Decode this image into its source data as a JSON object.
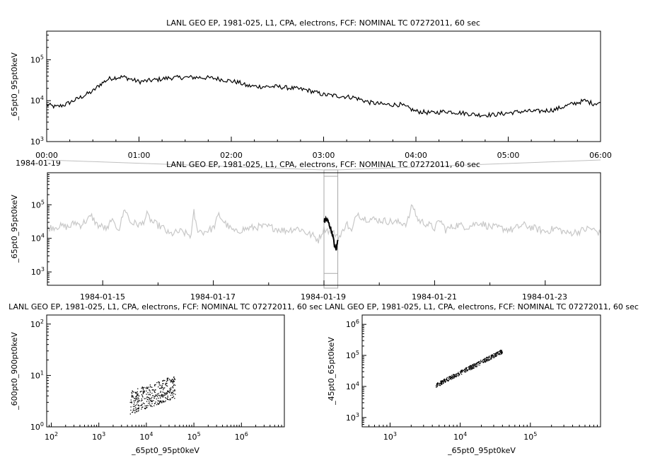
{
  "chart_data": [
    {
      "id": "top",
      "type": "line",
      "title": "LANL GEO EP, 1981-025, L1, CPA, electrons, FCF: NOMINAL TC 07272011, 60 sec",
      "ylabel": "_65pt0_95pt0keV",
      "xlabel": "",
      "x_tick_labels": [
        "00:00",
        "01:00",
        "02:00",
        "03:00",
        "04:00",
        "05:00",
        "06:00"
      ],
      "x_date_label": "1984-01-19",
      "xlim": [
        0,
        6
      ],
      "x_unit": "hours",
      "y_scale": "log",
      "ylim": [
        1000,
        500000
      ],
      "y_ticks": [
        {
          "value": 1000,
          "base": "10",
          "exp": "3"
        },
        {
          "value": 10000,
          "base": "10",
          "exp": "4"
        },
        {
          "value": 100000,
          "base": "10",
          "exp": "5"
        }
      ],
      "series": [
        {
          "color": "#000000",
          "points": [
            [
              0,
              8000
            ],
            [
              0.1,
              7000
            ],
            [
              0.2,
              8000
            ],
            [
              0.33,
              11000
            ],
            [
              0.5,
              17000
            ],
            [
              0.58,
              25000
            ],
            [
              0.67,
              34000
            ],
            [
              0.75,
              37000
            ],
            [
              0.83,
              38000
            ],
            [
              0.92,
              33000
            ],
            [
              1.0,
              29000
            ],
            [
              1.17,
              32000
            ],
            [
              1.33,
              36000
            ],
            [
              1.5,
              37000
            ],
            [
              1.67,
              37000
            ],
            [
              1.83,
              35000
            ],
            [
              2.0,
              30000
            ],
            [
              2.08,
              28000
            ],
            [
              2.17,
              23000
            ],
            [
              2.33,
              22000
            ],
            [
              2.5,
              22000
            ],
            [
              2.67,
              20000
            ],
            [
              2.83,
              18000
            ],
            [
              3.0,
              14000
            ],
            [
              3.17,
              13000
            ],
            [
              3.33,
              12000
            ],
            [
              3.5,
              9000
            ],
            [
              3.67,
              8000
            ],
            [
              3.83,
              8000
            ],
            [
              4.0,
              5500
            ],
            [
              4.17,
              5000
            ],
            [
              4.33,
              5500
            ],
            [
              4.5,
              5000
            ],
            [
              4.67,
              4500
            ],
            [
              4.83,
              4500
            ],
            [
              5.0,
              5000
            ],
            [
              5.17,
              5500
            ],
            [
              5.33,
              5500
            ],
            [
              5.5,
              6000
            ],
            [
              5.67,
              8000
            ],
            [
              5.83,
              10000
            ],
            [
              5.92,
              8500
            ],
            [
              6.0,
              9000
            ]
          ]
        }
      ]
    },
    {
      "id": "overview",
      "type": "line",
      "title": "LANL GEO EP, 1981-025, L1, CPA, electrons, FCF: NOMINAL TC 07272011, 60 sec",
      "ylabel": "_65pt0_95pt0keV",
      "xlabel": "",
      "x_tick_labels": [
        "1984-01-15",
        "1984-01-17",
        "1984-01-19",
        "1984-01-21",
        "1984-01-23"
      ],
      "x_ticks": [
        15,
        17,
        19,
        21,
        23
      ],
      "xlim": [
        14,
        24
      ],
      "x_unit": "day of January 1984",
      "y_scale": "log",
      "ylim": [
        400,
        900000
      ],
      "y_ticks": [
        {
          "value": 1000,
          "base": "10",
          "exp": "3"
        },
        {
          "value": 10000,
          "base": "10",
          "exp": "4"
        },
        {
          "value": 100000,
          "base": "10",
          "exp": "5"
        }
      ],
      "highlight_xrange": [
        19.0,
        19.25
      ],
      "series": [
        {
          "color": "#c8c8c8",
          "points": [
            [
              14.0,
              20000
            ],
            [
              14.2,
              23000
            ],
            [
              14.4,
              22000
            ],
            [
              14.5,
              30000
            ],
            [
              14.6,
              25000
            ],
            [
              14.8,
              45000
            ],
            [
              14.9,
              25000
            ],
            [
              15.0,
              22000
            ],
            [
              15.1,
              18000
            ],
            [
              15.15,
              40000
            ],
            [
              15.2,
              25000
            ],
            [
              15.3,
              20000
            ],
            [
              15.4,
              80000
            ],
            [
              15.5,
              30000
            ],
            [
              15.7,
              25000
            ],
            [
              15.8,
              50000
            ],
            [
              15.9,
              30000
            ],
            [
              16.1,
              20000
            ],
            [
              16.2,
              13000
            ],
            [
              16.4,
              16000
            ],
            [
              16.6,
              12000
            ],
            [
              16.65,
              60000
            ],
            [
              16.7,
              20000
            ],
            [
              16.8,
              15000
            ],
            [
              17.0,
              20000
            ],
            [
              17.1,
              50000
            ],
            [
              17.2,
              30000
            ],
            [
              17.3,
              20000
            ],
            [
              17.4,
              15000
            ],
            [
              17.5,
              18000
            ],
            [
              17.8,
              22000
            ],
            [
              18.0,
              22000
            ],
            [
              18.3,
              17000
            ],
            [
              18.5,
              20000
            ],
            [
              18.6,
              18000
            ],
            [
              18.7,
              14000
            ],
            [
              18.8,
              12000
            ],
            [
              18.9,
              9000
            ],
            [
              19.0,
              20000
            ],
            [
              19.3,
              11000
            ],
            [
              19.4,
              30000
            ],
            [
              19.5,
              15000
            ],
            [
              19.6,
              60000
            ],
            [
              19.7,
              40000
            ],
            [
              20.0,
              35000
            ],
            [
              20.3,
              30000
            ],
            [
              20.5,
              28000
            ],
            [
              20.6,
              100000
            ],
            [
              20.7,
              35000
            ],
            [
              20.9,
              25000
            ],
            [
              21.0,
              20000
            ],
            [
              21.1,
              35000
            ],
            [
              21.2,
              18000
            ],
            [
              21.4,
              25000
            ],
            [
              21.6,
              22000
            ],
            [
              21.8,
              30000
            ],
            [
              22.0,
              22000
            ],
            [
              22.2,
              20000
            ],
            [
              22.4,
              18000
            ],
            [
              22.6,
              25000
            ],
            [
              22.8,
              20000
            ],
            [
              23.0,
              16000
            ],
            [
              23.2,
              20000
            ],
            [
              23.4,
              14000
            ],
            [
              23.6,
              16000
            ],
            [
              23.8,
              20000
            ],
            [
              23.9,
              17000
            ],
            [
              24.0,
              14000
            ]
          ]
        },
        {
          "color": "#000000",
          "points": [
            [
              19.0,
              34000
            ],
            [
              19.04,
              38000
            ],
            [
              19.08,
              30000
            ],
            [
              19.12,
              20000
            ],
            [
              19.16,
              12000
            ],
            [
              19.19,
              6000
            ],
            [
              19.22,
              4500
            ],
            [
              19.25,
              9000
            ]
          ]
        }
      ]
    },
    {
      "id": "scatter-left",
      "type": "scatter",
      "title": "LANL GEO EP, 1981-025, L1, CPA, electrons, FCF: NOMINAL TC 07272011, 60 sec",
      "xlabel": "_65pt0_95pt0keV",
      "ylabel": "_600pt0_900pt0keV",
      "x_scale": "log",
      "y_scale": "log",
      "xlim": [
        80,
        8000000
      ],
      "ylim": [
        1,
        150
      ],
      "x_ticks": [
        {
          "value": 100,
          "base": "10",
          "exp": "2"
        },
        {
          "value": 1000,
          "base": "10",
          "exp": "3"
        },
        {
          "value": 10000,
          "base": "10",
          "exp": "4"
        },
        {
          "value": 100000,
          "base": "10",
          "exp": "5"
        },
        {
          "value": 1000000,
          "base": "10",
          "exp": "6"
        }
      ],
      "y_ticks": [
        {
          "value": 1,
          "base": "10",
          "exp": "0"
        },
        {
          "value": 10,
          "base": "10",
          "exp": "1"
        },
        {
          "value": 100,
          "base": "10",
          "exp": "2"
        }
      ],
      "point_cloud": {
        "color": "#000000",
        "count": 360,
        "x_log_range": [
          3.65,
          4.6
        ],
        "y_log_range": [
          0.3,
          1.0
        ],
        "trend": "increasing"
      }
    },
    {
      "id": "scatter-right",
      "type": "scatter",
      "title": "LANL GEO EP, 1981-025, L1, CPA, electrons, FCF: NOMINAL TC 07272011, 60 sec",
      "xlabel": "_65pt0_95pt0keV",
      "ylabel": "_45pt0_65pt0keV",
      "x_scale": "log",
      "y_scale": "log",
      "xlim": [
        400,
        1000000
      ],
      "ylim": [
        500,
        2000000
      ],
      "x_ticks": [
        {
          "value": 1000,
          "base": "10",
          "exp": "3"
        },
        {
          "value": 10000,
          "base": "10",
          "exp": "4"
        },
        {
          "value": 100000,
          "base": "10",
          "exp": "5"
        }
      ],
      "y_ticks": [
        {
          "value": 1000,
          "base": "10",
          "exp": "3"
        },
        {
          "value": 10000,
          "base": "10",
          "exp": "4"
        },
        {
          "value": 100000,
          "base": "10",
          "exp": "5"
        },
        {
          "value": 1000000,
          "base": "10",
          "exp": "6"
        }
      ],
      "point_cloud": {
        "color": "#000000",
        "count": 360,
        "x_log_range": [
          3.65,
          4.6
        ],
        "y_log_range": [
          4.05,
          5.15
        ],
        "trend": "increasing"
      }
    }
  ]
}
